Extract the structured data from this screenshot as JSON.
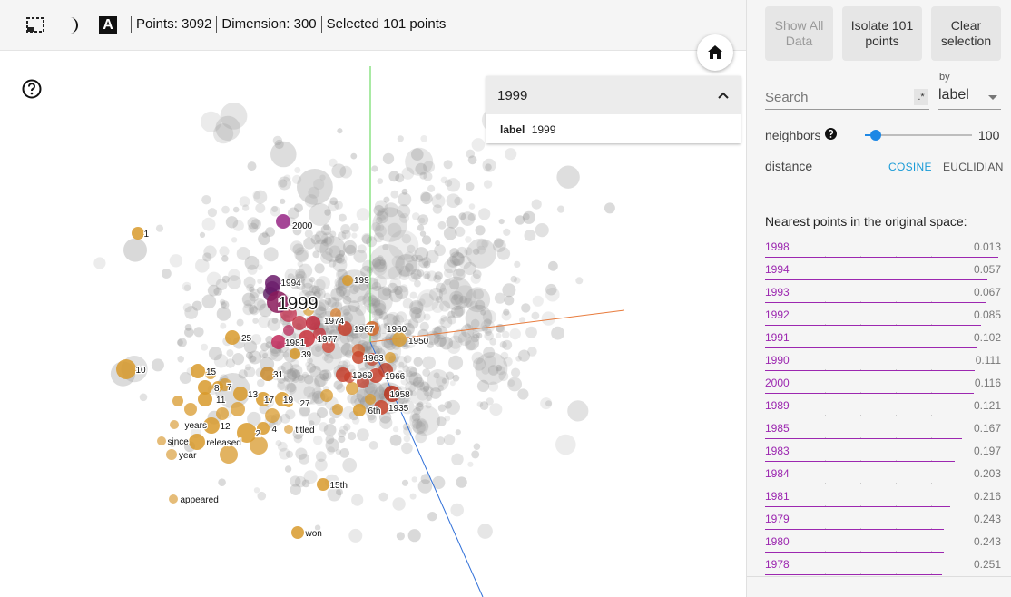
{
  "toolbar": {
    "select_icon": "selection-box-icon",
    "night_icon": "night-mode-icon",
    "labels_icon": "label-toggle-icon",
    "label_glyph": "A",
    "points": "Points: 3092",
    "dimension": "Dimension: 300",
    "selected": "Selected 101 points"
  },
  "info_card": {
    "title": "1999",
    "field": "label",
    "value": "1999"
  },
  "plot": {
    "axis_colors": {
      "x": "#e87b3c",
      "y": "#53d64a",
      "z": "#2f6fd8"
    },
    "labels": [
      {
        "text": "2000",
        "color": "#9b2a8a"
      },
      {
        "text": "1994",
        "color": "#6a1b6a"
      },
      {
        "text": "199",
        "color": "#d89a2c"
      },
      {
        "text": "1999",
        "color": "#8a1a5a"
      },
      {
        "text": "1974",
        "color": "#c22c3e"
      },
      {
        "text": "1967",
        "color": "#c5402d"
      },
      {
        "text": "1960",
        "color": "#d56a2a"
      },
      {
        "text": "1981",
        "color": "#c2295a"
      },
      {
        "text": "1977",
        "color": "#c8303a"
      },
      {
        "text": "1950",
        "color": "#d8a03a"
      },
      {
        "text": "25",
        "color": "#d89a2c"
      },
      {
        "text": "39",
        "color": "#d89a2c"
      },
      {
        "text": "10",
        "color": "#d89a2c"
      },
      {
        "text": "15",
        "color": "#d89a2c"
      },
      {
        "text": "31",
        "color": "#c88a2c"
      },
      {
        "text": "1963",
        "color": "#c8452d"
      },
      {
        "text": "1969",
        "color": "#c5402d"
      },
      {
        "text": "1966",
        "color": "#c5402d"
      },
      {
        "text": "8",
        "color": "#d89a2c"
      },
      {
        "text": "7",
        "color": "#d89a2c"
      },
      {
        "text": "11",
        "color": "#d89a2c"
      },
      {
        "text": "13",
        "color": "#d89a2c"
      },
      {
        "text": "17",
        "color": "#d89a2c"
      },
      {
        "text": "19",
        "color": "#d89a2c"
      },
      {
        "text": "27",
        "color": "#d89a2c"
      },
      {
        "text": "1958",
        "color": "#b8301a"
      },
      {
        "text": "6th",
        "color": "#d89a2c"
      },
      {
        "text": "1935",
        "color": "#c8452d"
      },
      {
        "text": "years",
        "color": "#e0b060"
      },
      {
        "text": "12",
        "color": "#d89a2c"
      },
      {
        "text": "4",
        "color": "#d89a2c"
      },
      {
        "text": "titled",
        "color": "#e0b060"
      },
      {
        "text": "since",
        "color": "#e0b060"
      },
      {
        "text": "2",
        "color": "#d89a2c"
      },
      {
        "text": "released",
        "color": "#d89a2c"
      },
      {
        "text": "year",
        "color": "#e0b060"
      },
      {
        "text": "15th",
        "color": "#d89a2c"
      },
      {
        "text": "appeared",
        "color": "#e0b060"
      },
      {
        "text": "won",
        "color": "#d89a2c"
      },
      {
        "text": "1",
        "color": "#d89a2c"
      }
    ]
  },
  "panel": {
    "show_all": "Show All Data",
    "isolate": "Isolate 101 points",
    "clear": "Clear selection",
    "search_placeholder": "Search",
    "regex": ".*",
    "by_label": "by",
    "by_value": "label",
    "neighbors_label": "neighbors",
    "neighbors_value": "100",
    "neighbors_fraction": 0.1,
    "distance_label": "distance",
    "cosine": "COSINE",
    "euclidean": "EUCLIDIAN",
    "nearest_title": "Nearest points in the original space:",
    "nearest": [
      {
        "label": "1998",
        "value": "0.013"
      },
      {
        "label": "1994",
        "value": "0.057"
      },
      {
        "label": "1993",
        "value": "0.067"
      },
      {
        "label": "1992",
        "value": "0.085"
      },
      {
        "label": "1991",
        "value": "0.102"
      },
      {
        "label": "1990",
        "value": "0.111"
      },
      {
        "label": "2000",
        "value": "0.116"
      },
      {
        "label": "1989",
        "value": "0.121"
      },
      {
        "label": "1985",
        "value": "0.167"
      },
      {
        "label": "1983",
        "value": "0.197"
      },
      {
        "label": "1984",
        "value": "0.203"
      },
      {
        "label": "1981",
        "value": "0.216"
      },
      {
        "label": "1979",
        "value": "0.243"
      },
      {
        "label": "1980",
        "value": "0.243"
      },
      {
        "label": "1978",
        "value": "0.251"
      }
    ]
  }
}
